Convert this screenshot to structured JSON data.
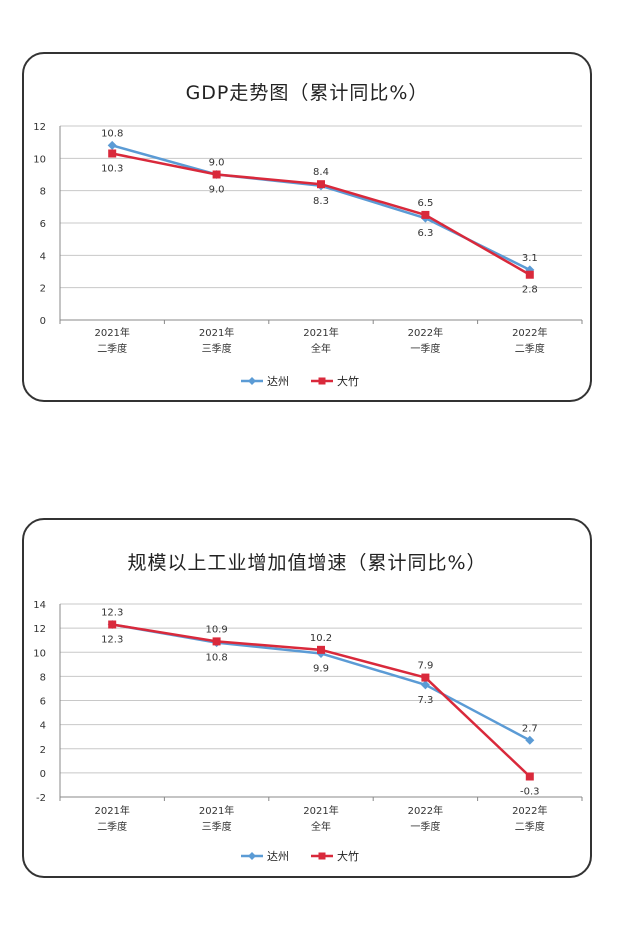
{
  "colors": {
    "dazhou": "#5b9bd5",
    "dazhu": "#d9293b",
    "grid": "#c8c8c8",
    "axis": "#888888"
  },
  "chart_data": [
    {
      "type": "line",
      "title": "GDP走势图（累计同比%）",
      "categories": [
        [
          "2021年",
          "二季度"
        ],
        [
          "2021年",
          "三季度"
        ],
        [
          "2021年",
          "全年"
        ],
        [
          "2022年",
          "一季度"
        ],
        [
          "2022年",
          "二季度"
        ]
      ],
      "ylim": [
        0,
        12
      ],
      "yticks": [
        0,
        2,
        4,
        6,
        8,
        10,
        12
      ],
      "grid": true,
      "legend_position": "bottom",
      "series": [
        {
          "name": "达州",
          "marker": "diamond",
          "color": "#5b9bd5",
          "values": [
            10.8,
            9.0,
            8.3,
            6.3,
            3.1
          ],
          "labels": [
            "10.8",
            "9.0",
            "8.3",
            "6.3",
            "3.1"
          ]
        },
        {
          "name": "大竹",
          "marker": "square",
          "color": "#d9293b",
          "values": [
            10.3,
            9.0,
            8.4,
            6.5,
            2.8
          ],
          "labels": [
            "10.3",
            "9.0",
            "8.4",
            "6.5",
            "2.8"
          ]
        }
      ]
    },
    {
      "type": "line",
      "title": "规模以上工业增加值增速（累计同比%）",
      "categories": [
        [
          "2021年",
          "二季度"
        ],
        [
          "2021年",
          "三季度"
        ],
        [
          "2021年",
          "全年"
        ],
        [
          "2022年",
          "一季度"
        ],
        [
          "2022年",
          "二季度"
        ]
      ],
      "ylim": [
        -2,
        14
      ],
      "yticks": [
        -2,
        0,
        2,
        4,
        6,
        8,
        10,
        12,
        14
      ],
      "grid": true,
      "legend_position": "bottom",
      "series": [
        {
          "name": "达州",
          "marker": "diamond",
          "color": "#5b9bd5",
          "values": [
            12.3,
            10.8,
            9.9,
            7.3,
            2.7
          ],
          "labels": [
            "12.3",
            "10.8",
            "9.9",
            "7.3",
            "2.7"
          ]
        },
        {
          "name": "大竹",
          "marker": "square",
          "color": "#d9293b",
          "values": [
            12.3,
            10.9,
            10.2,
            7.9,
            -0.3
          ],
          "labels": [
            "12.3",
            "10.9",
            "10.2",
            "7.9",
            "-0.3"
          ]
        }
      ]
    }
  ]
}
